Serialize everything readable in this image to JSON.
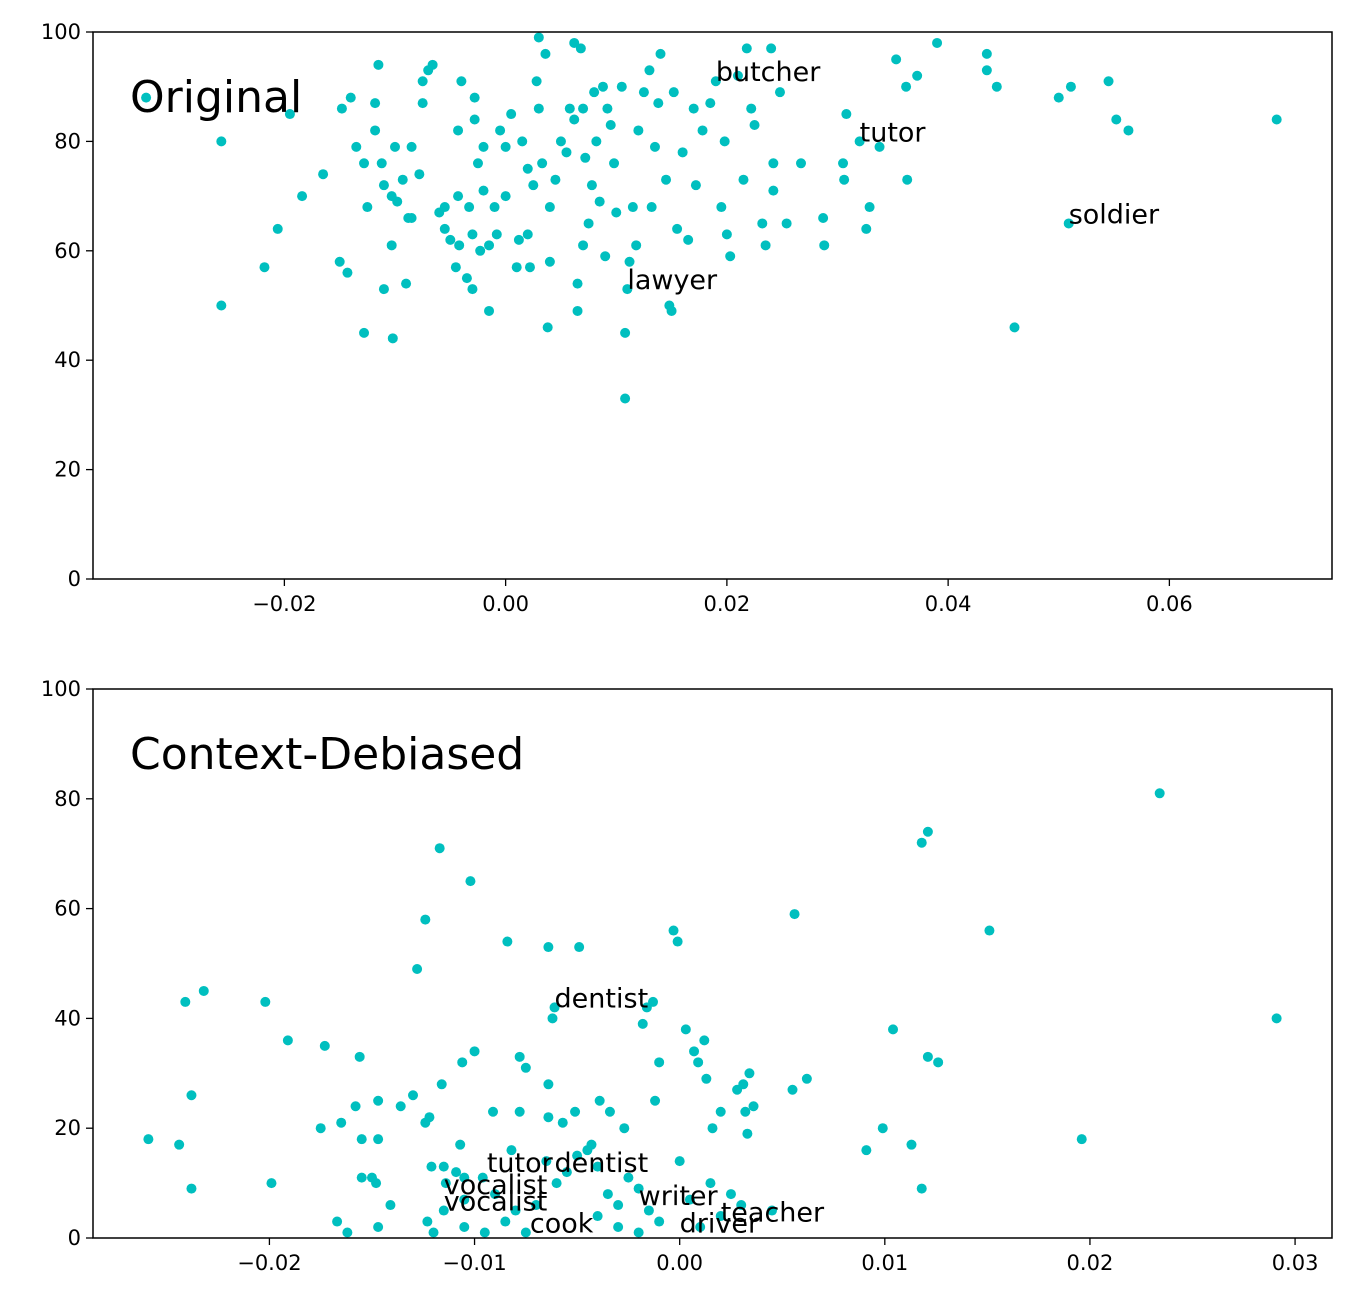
{
  "chart_data": [
    {
      "type": "scatter",
      "label": "Original",
      "color": "#00bfbf",
      "xlim": [
        -0.0373,
        0.0747
      ],
      "ylim": [
        0,
        100
      ],
      "xticks": [
        {
          "value": -0.02,
          "label": "−0.02"
        },
        {
          "value": 0,
          "label": "0.00"
        },
        {
          "value": 0.02,
          "label": "0.02"
        },
        {
          "value": 0.04,
          "label": "0.04"
        },
        {
          "value": 0.06,
          "label": "0.06"
        }
      ],
      "yticks": [
        0,
        20,
        40,
        60,
        80,
        100
      ],
      "x": [
        -0.0325,
        -0.0257,
        -0.0257,
        -0.0218,
        -0.0206,
        -0.0195,
        -0.0184,
        -0.0165,
        -0.015,
        -0.0148,
        -0.0143,
        -0.014,
        -0.0135,
        -0.0128,
        -0.0128,
        -0.0125,
        -0.0118,
        -0.0118,
        -0.0115,
        -0.0112,
        -0.011,
        -0.011,
        -0.0103,
        -0.0103,
        -0.0102,
        -0.01,
        -0.0098,
        -0.0093,
        -0.009,
        -0.0088,
        -0.0085,
        -0.0085,
        -0.0078,
        -0.0075,
        -0.0075,
        -0.007,
        -0.0066,
        -0.006,
        -0.0055,
        -0.0055,
        -0.005,
        -0.0045,
        -0.0043,
        -0.0043,
        -0.0042,
        -0.004,
        -0.0035,
        -0.0033,
        -0.003,
        -0.003,
        -0.0028,
        -0.0028,
        -0.0025,
        -0.0023,
        -0.002,
        -0.002,
        -0.0015,
        -0.0015,
        -0.001,
        -0.0008,
        -0.0005,
        0,
        0,
        0.0005,
        0.001,
        0.0012,
        0.0015,
        0.002,
        0.002,
        0.0022,
        0.0025,
        0.0028,
        0.003,
        0.003,
        0.0033,
        0.0036,
        0.0038,
        0.004,
        0.004,
        0.0045,
        0.005,
        0.0055,
        0.0058,
        0.0062,
        0.0062,
        0.0065,
        0.0065,
        0.0068,
        0.007,
        0.007,
        0.0072,
        0.0075,
        0.0078,
        0.008,
        0.0082,
        0.0085,
        0.0088,
        0.009,
        0.0092,
        0.0095,
        0.0098,
        0.01,
        0.0105,
        0.0108,
        0.0108,
        0.011,
        0.0112,
        0.0115,
        0.0118,
        0.012,
        0.0125,
        0.013,
        0.0132,
        0.0135,
        0.0138,
        0.014,
        0.0145,
        0.0148,
        0.015,
        0.0152,
        0.0155,
        0.016,
        0.0165,
        0.017,
        0.0172,
        0.0178,
        0.0185,
        0.019,
        0.0195,
        0.0198,
        0.02,
        0.0203,
        0.021,
        0.0215,
        0.0218,
        0.0222,
        0.0225,
        0.0232,
        0.0235,
        0.024,
        0.0242,
        0.0242,
        0.0248,
        0.0254,
        0.0267,
        0.0287,
        0.0288,
        0.0305,
        0.0306,
        0.0308,
        0.032,
        0.0326,
        0.0329,
        0.0338,
        0.0353,
        0.0362,
        0.0363,
        0.0372,
        0.039,
        0.0435,
        0.0435,
        0.0444,
        0.046,
        0.05,
        0.0509,
        0.0511,
        0.0545,
        0.0552,
        0.0563,
        0.0697
      ],
      "values": [
        88,
        80,
        50,
        57,
        64,
        85,
        70,
        74,
        58,
        86,
        56,
        88,
        79,
        45,
        76,
        68,
        82,
        87,
        94,
        76,
        72,
        53,
        70,
        61,
        44,
        79,
        69,
        73,
        54,
        66,
        66,
        79,
        74,
        87,
        91,
        93,
        94,
        67,
        68,
        64,
        62,
        57,
        70,
        82,
        61,
        91,
        55,
        68,
        53,
        63,
        84,
        88,
        76,
        60,
        71,
        79,
        49,
        61,
        68,
        63,
        82,
        70,
        79,
        85,
        57,
        62,
        80,
        63,
        75,
        57,
        72,
        91,
        99,
        86,
        76,
        96,
        46,
        68,
        58,
        73,
        80,
        78,
        86,
        98,
        84,
        54,
        49,
        97,
        86,
        61,
        77,
        65,
        72,
        89,
        80,
        69,
        90,
        59,
        86,
        83,
        76,
        67,
        90,
        45,
        33,
        53,
        58,
        68,
        61,
        82,
        89,
        93,
        68,
        79,
        87,
        96,
        73,
        50,
        49,
        89,
        64,
        78,
        62,
        86,
        72,
        82,
        87,
        91,
        68,
        80,
        63,
        59,
        92,
        73,
        97,
        86,
        83,
        65,
        61,
        97,
        76,
        71,
        89,
        65,
        76,
        66,
        61,
        76,
        73,
        85,
        80,
        64,
        68,
        79,
        95,
        90,
        73,
        92,
        98,
        96,
        93,
        90,
        46,
        88,
        65,
        90,
        91,
        84,
        82,
        84
      ],
      "annotations": [
        {
          "text": "butcher",
          "x": 0.019,
          "y": 91
        },
        {
          "text": "tutor",
          "x": 0.032,
          "y": 80
        },
        {
          "text": "soldier",
          "x": 0.0509,
          "y": 65
        },
        {
          "text": "lawyer",
          "x": 0.011,
          "y": 53
        }
      ]
    },
    {
      "type": "scatter",
      "label": "Context-Debiased",
      "color": "#00bfbf",
      "xlim": [
        -0.0286,
        0.0318
      ],
      "ylim": [
        0,
        100
      ],
      "xticks": [
        {
          "value": -0.02,
          "label": "−0.02"
        },
        {
          "value": -0.01,
          "label": "−0.01"
        },
        {
          "value": 0,
          "label": "0.00"
        },
        {
          "value": 0.01,
          "label": "0.01"
        },
        {
          "value": 0.02,
          "label": "0.02"
        },
        {
          "value": 0.03,
          "label": "0.03"
        }
      ],
      "yticks": [
        0,
        20,
        40,
        60,
        80,
        100
      ],
      "x": [
        -0.0259,
        -0.0244,
        -0.0241,
        -0.0238,
        -0.0238,
        -0.0232,
        -0.0202,
        -0.0199,
        -0.0191,
        -0.0175,
        -0.0173,
        -0.0167,
        -0.0165,
        -0.0162,
        -0.0158,
        -0.0156,
        -0.0155,
        -0.0155,
        -0.015,
        -0.0147,
        -0.0147,
        -0.0148,
        -0.0147,
        -0.0141,
        -0.0136,
        -0.013,
        -0.0128,
        -0.0124,
        -0.0124,
        -0.0122,
        -0.0121,
        -0.0117,
        -0.0116,
        -0.0115,
        -0.0114,
        -0.0109,
        -0.0107,
        -0.0106,
        -0.0102,
        -0.01,
        -0.0096,
        -0.0091,
        -0.0084,
        -0.0082,
        -0.0078,
        -0.0078,
        -0.0075,
        -0.0064,
        -0.0064,
        -0.0064,
        -0.0062,
        -0.0061,
        -0.0057,
        -0.0051,
        -0.0049,
        -0.0043,
        -0.0039,
        -0.0034,
        -0.0027,
        -0.0018,
        -0.0016,
        -0.0013,
        -0.0012,
        -0.001,
        -0.0003,
        -0.0001,
        0.0003,
        0.0007,
        0.0009,
        0.0012,
        0.0013,
        0.0016,
        0.002,
        0.0028,
        0.0031,
        0.0032,
        0.0033,
        0.0034,
        0.0036,
        0.0055,
        0.0056,
        0.0062,
        0.0091,
        0.0099,
        0.0104,
        0.0113,
        0.0118,
        0.0118,
        0.0121,
        0.0121,
        0.0126,
        0.0151,
        0.0196,
        0.0234,
        0.0291,
        -0.009,
        -0.008,
        -0.0085,
        -0.0075,
        -0.007,
        -0.0065,
        -0.006,
        -0.0055,
        -0.005,
        -0.0045,
        -0.004,
        -0.004,
        -0.0035,
        -0.003,
        -0.003,
        -0.0025,
        -0.002,
        -0.002,
        -0.0015,
        -0.001,
        0,
        0.0005,
        0.001,
        0.0015,
        0.002,
        0.0025,
        0.003,
        0.0045,
        -0.0105,
        -0.0115,
        -0.012,
        -0.0105,
        -0.0095,
        -0.0105,
        -0.0123
      ],
      "values": [
        18,
        17,
        43,
        26,
        9,
        45,
        43,
        10,
        36,
        20,
        35,
        3,
        21,
        1,
        24,
        33,
        18,
        11,
        11,
        25,
        18,
        10,
        2,
        6,
        24,
        26,
        49,
        58,
        21,
        22,
        13,
        71,
        28,
        13,
        10,
        12,
        17,
        32,
        65,
        34,
        11,
        23,
        54,
        16,
        23,
        33,
        31,
        53,
        28,
        22,
        40,
        42,
        21,
        23,
        53,
        17,
        25,
        23,
        20,
        39,
        42,
        43,
        25,
        32,
        56,
        54,
        38,
        34,
        32,
        36,
        29,
        20,
        23,
        27,
        28,
        23,
        19,
        30,
        24,
        27,
        59,
        29,
        16,
        20,
        38,
        17,
        9,
        72,
        74,
        33,
        32,
        56,
        18,
        81,
        40,
        8,
        5,
        3,
        1,
        6,
        14,
        10,
        12,
        15,
        16,
        13,
        4,
        8,
        6,
        2,
        11,
        9,
        1,
        5,
        3,
        14,
        7,
        2,
        10,
        4,
        8,
        6,
        5,
        7,
        5,
        1,
        2,
        1,
        11,
        3
      ],
      "annotations": [
        {
          "text": "dentist",
          "x": -0.0061,
          "y": 42
        },
        {
          "text": "tutor",
          "x": -0.0094,
          "y": 12
        },
        {
          "text": "dentist",
          "x": -0.0061,
          "y": 12
        },
        {
          "text": "vocalist",
          "x": -0.0115,
          "y": 8
        },
        {
          "text": "vocalist",
          "x": -0.0115,
          "y": 5
        },
        {
          "text": "writer",
          "x": -0.002,
          "y": 6
        },
        {
          "text": "teacher",
          "x": 0.002,
          "y": 3
        },
        {
          "text": "cook",
          "x": -0.0073,
          "y": 1
        },
        {
          "text": "driver",
          "x": 0,
          "y": 1
        }
      ]
    }
  ]
}
